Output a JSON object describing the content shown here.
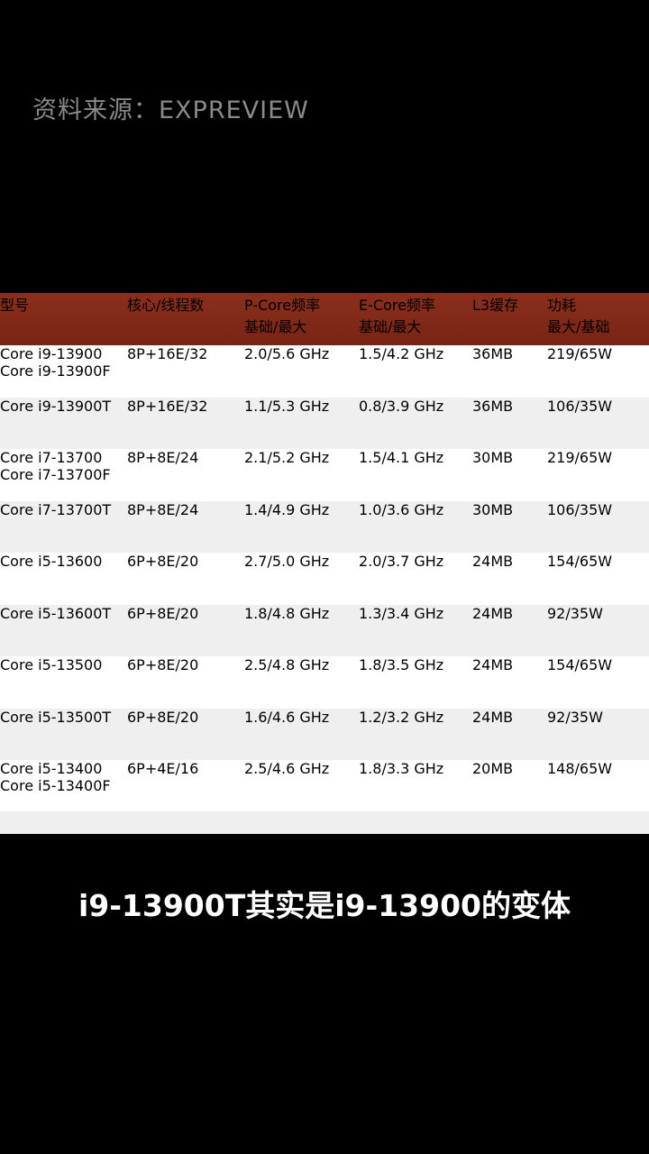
{
  "header": {
    "source": "资料来源：EXPREVIEW"
  },
  "table": {
    "columns": [
      [
        "型号"
      ],
      [
        "核心/线程数"
      ],
      [
        "P-Core频率",
        "基础/最大"
      ],
      [
        "E-Core频率",
        "基础/最大"
      ],
      [
        "L3缓存"
      ],
      [
        "功耗",
        "最大/基础"
      ]
    ],
    "rows": [
      [
        [
          "Core i9-13900",
          "Core i9-13900F"
        ],
        "8P+16E/32",
        "2.0/5.6 GHz",
        "1.5/4.2 GHz",
        "36MB",
        "219/65W"
      ],
      [
        [
          "Core i9-13900T"
        ],
        "8P+16E/32",
        "1.1/5.3 GHz",
        "0.8/3.9 GHz",
        "36MB",
        "106/35W"
      ],
      [
        [
          "Core i7-13700",
          "Core i7-13700F"
        ],
        "8P+8E/24",
        "2.1/5.2 GHz",
        "1.5/4.1 GHz",
        "30MB",
        "219/65W"
      ],
      [
        [
          "Core i7-13700T"
        ],
        "8P+8E/24",
        "1.4/4.9 GHz",
        "1.0/3.6 GHz",
        "30MB",
        "106/35W"
      ],
      [
        [
          "Core i5-13600"
        ],
        "6P+8E/20",
        "2.7/5.0 GHz",
        "2.0/3.7 GHz",
        "24MB",
        "154/65W"
      ],
      [
        [
          "Core i5-13600T"
        ],
        "6P+8E/20",
        "1.8/4.8 GHz",
        "1.3/3.4 GHz",
        "24MB",
        "92/35W"
      ],
      [
        [
          "Core i5-13500"
        ],
        "6P+8E/20",
        "2.5/4.8 GHz",
        "1.8/3.5 GHz",
        "24MB",
        "154/65W"
      ],
      [
        [
          "Core i5-13500T"
        ],
        "6P+8E/20",
        "1.6/4.6 GHz",
        "1.2/3.2 GHz",
        "24MB",
        "92/35W"
      ],
      [
        [
          "Core i5-13400",
          "Core i5-13400F"
        ],
        "6P+4E/16",
        "2.5/4.6 GHz",
        "1.8/3.3 GHz",
        "20MB",
        "148/65W"
      ]
    ]
  },
  "caption": "i9-13900T其实是i9-13900的变体"
}
